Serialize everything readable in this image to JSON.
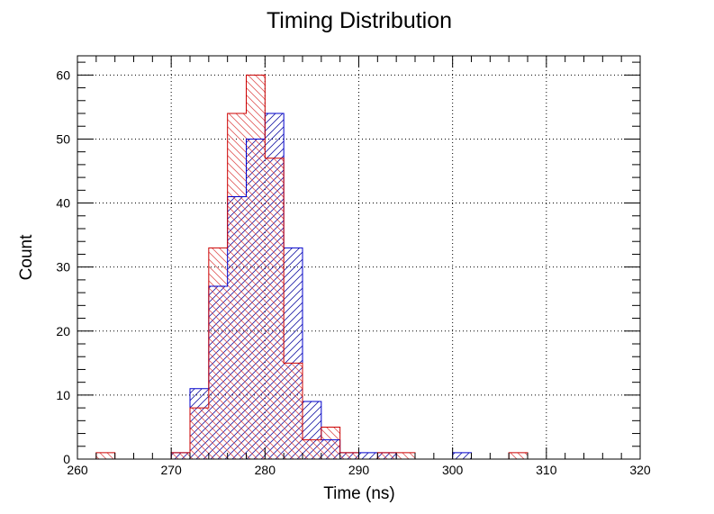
{
  "chart_data": {
    "type": "histogram",
    "title": "Timing Distribution",
    "xlabel": "Time (ns)",
    "ylabel": "Count",
    "xlim": [
      260,
      320
    ],
    "ylim": [
      0,
      63
    ],
    "bin_width": 2,
    "x_ticks": [
      260,
      270,
      280,
      290,
      300,
      310,
      320
    ],
    "y_ticks": [
      0,
      10,
      20,
      30,
      40,
      50,
      60
    ],
    "grid": true,
    "series": [
      {
        "color": "#0000cc",
        "hatch": "forward-diagonal",
        "bins": [
          {
            "x": 270,
            "y": 1
          },
          {
            "x": 272,
            "y": 11
          },
          {
            "x": 274,
            "y": 27
          },
          {
            "x": 276,
            "y": 41
          },
          {
            "x": 278,
            "y": 50
          },
          {
            "x": 280,
            "y": 54
          },
          {
            "x": 282,
            "y": 33
          },
          {
            "x": 284,
            "y": 9
          },
          {
            "x": 286,
            "y": 3
          },
          {
            "x": 288,
            "y": 1
          },
          {
            "x": 290,
            "y": 1
          },
          {
            "x": 292,
            "y": 1
          },
          {
            "x": 300,
            "y": 1
          }
        ]
      },
      {
        "color": "#cc0000",
        "hatch": "back-diagonal",
        "bins": [
          {
            "x": 262,
            "y": 1
          },
          {
            "x": 270,
            "y": 1
          },
          {
            "x": 272,
            "y": 8
          },
          {
            "x": 274,
            "y": 33
          },
          {
            "x": 276,
            "y": 54
          },
          {
            "x": 278,
            "y": 60
          },
          {
            "x": 280,
            "y": 47
          },
          {
            "x": 282,
            "y": 15
          },
          {
            "x": 284,
            "y": 3
          },
          {
            "x": 286,
            "y": 5
          },
          {
            "x": 288,
            "y": 1
          },
          {
            "x": 292,
            "y": 1
          },
          {
            "x": 294,
            "y": 1
          },
          {
            "x": 306,
            "y": 1
          }
        ]
      }
    ]
  }
}
